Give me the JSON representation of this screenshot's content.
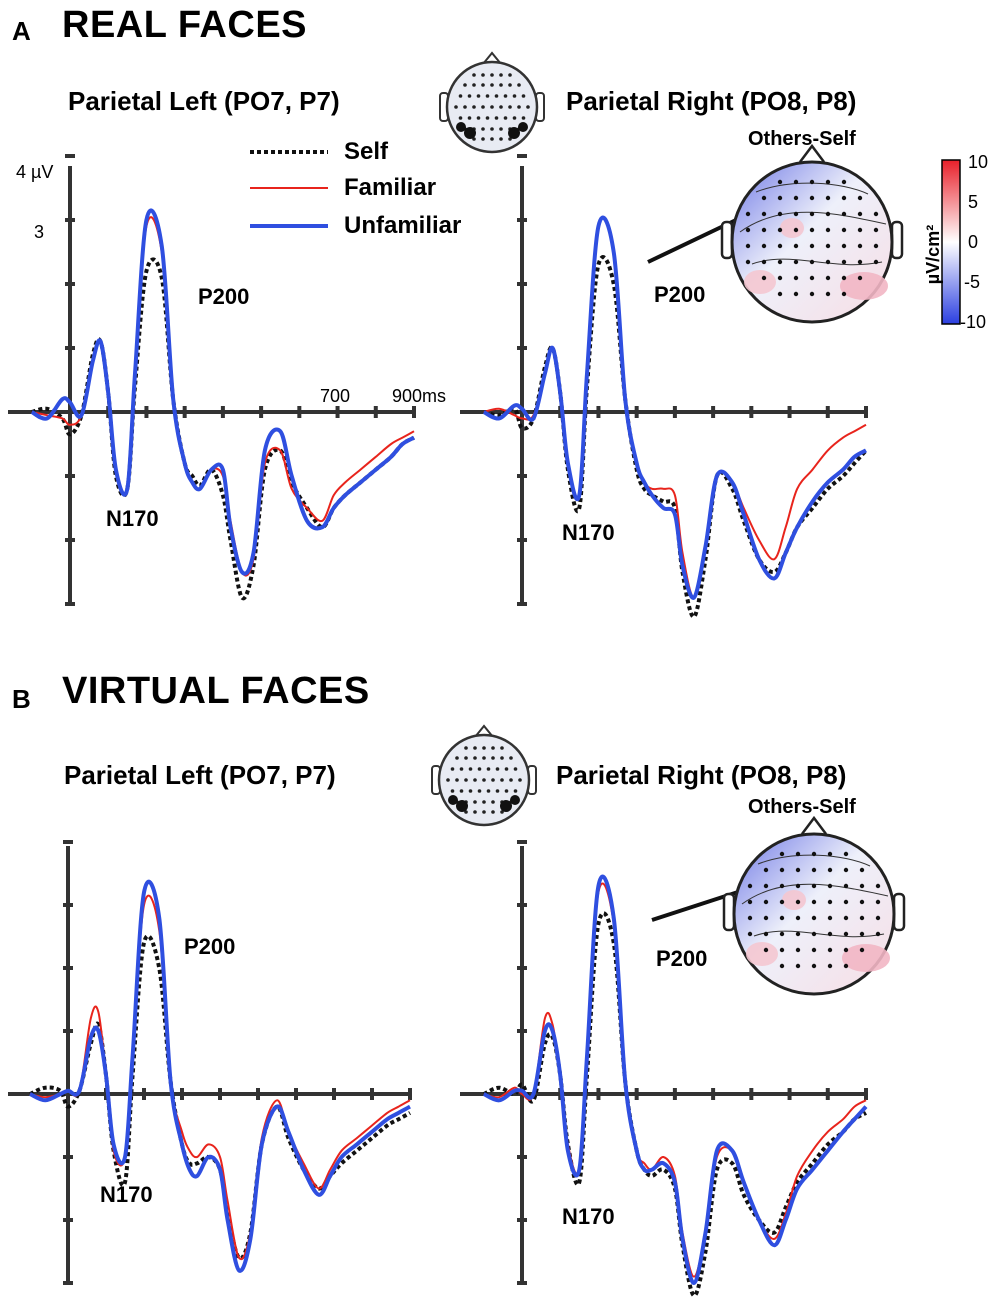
{
  "panels": [
    {
      "letter": "A",
      "heading": "REAL FACES",
      "left_title": "Parietal Left (PO7, P7)",
      "right_title": "Parietal Right (PO8, P8)",
      "topo_title": "Others-Self",
      "y_top_label": "4 µV",
      "y_3_label": "3",
      "x_700_label": "700",
      "x_900_label": "900ms",
      "peaks": {
        "p200": "P200",
        "n170": "N170"
      }
    },
    {
      "letter": "B",
      "heading": "VIRTUAL FACES",
      "left_title": "Parietal Left (PO7, P7)",
      "right_title": "Parietal Right (PO8, P8)",
      "topo_title": "Others-Self",
      "peaks": {
        "p200": "P200",
        "n170": "N170"
      }
    }
  ],
  "legend": [
    {
      "name": "Self",
      "color": "#111111",
      "style": "dotted"
    },
    {
      "name": "Familiar",
      "color": "#e8241c",
      "style": "solid-thin"
    },
    {
      "name": "Unfamiliar",
      "color": "#2f4fe0",
      "style": "solid-thick"
    }
  ],
  "colorbar": {
    "label": "µV/cm²",
    "ticks": [
      "10",
      "5",
      "0",
      "-5",
      "-10"
    ],
    "colors": {
      "max": "#e8202a",
      "mid": "#ffffff",
      "min": "#2b3fe0"
    }
  },
  "chart_data": [
    {
      "type": "line",
      "panel": "A",
      "subplot": "Parietal Left (PO7, P7)",
      "x_unit": "ms",
      "y_unit": "µV",
      "xlim": [
        -100,
        900
      ],
      "ylim": [
        -3,
        4
      ],
      "x": [
        -100,
        -60,
        -20,
        0,
        30,
        60,
        80,
        100,
        120,
        150,
        170,
        200,
        240,
        270,
        300,
        320,
        340,
        370,
        400,
        420,
        450,
        480,
        510,
        550,
        580,
        620,
        660,
        690,
        720,
        760,
        800,
        840,
        870,
        900
      ],
      "series": [
        {
          "name": "Self",
          "values": [
            0,
            0.05,
            -0.1,
            -0.35,
            -0.05,
            0.9,
            1.1,
            0.3,
            -1.0,
            -1.2,
            0.4,
            2.2,
            2.1,
            0.2,
            -0.8,
            -1.0,
            -1.15,
            -0.9,
            -1.3,
            -2.0,
            -2.9,
            -2.4,
            -0.9,
            -0.6,
            -1.1,
            -1.5,
            -1.8,
            -1.5,
            -1.3,
            -1.1,
            -0.9,
            -0.7,
            -0.5,
            -0.4
          ]
        },
        {
          "name": "Familiar",
          "values": [
            0,
            -0.05,
            -0.1,
            -0.2,
            -0.05,
            0.8,
            1.1,
            0.3,
            -0.9,
            -1.2,
            0.5,
            2.9,
            2.5,
            0.2,
            -0.8,
            -1.1,
            -1.2,
            -0.9,
            -1.0,
            -1.7,
            -2.5,
            -2.3,
            -0.8,
            -0.6,
            -1.2,
            -1.5,
            -1.7,
            -1.3,
            -1.1,
            -0.9,
            -0.7,
            -0.5,
            -0.4,
            -0.3
          ]
        },
        {
          "name": "Unfamiliar",
          "values": [
            0,
            -0.1,
            0.2,
            0.15,
            -0.05,
            0.8,
            1.1,
            0.3,
            -0.9,
            -1.2,
            0.6,
            3.0,
            2.6,
            0.2,
            -0.8,
            -1.1,
            -1.2,
            -0.9,
            -0.9,
            -1.8,
            -2.5,
            -2.2,
            -0.6,
            -0.3,
            -1.0,
            -1.7,
            -1.8,
            -1.5,
            -1.3,
            -1.1,
            -0.9,
            -0.7,
            -0.5,
            -0.4
          ]
        }
      ]
    },
    {
      "type": "line",
      "panel": "A",
      "subplot": "Parietal Right (PO8, P8)",
      "x_unit": "ms",
      "y_unit": "µV",
      "xlim": [
        -100,
        900
      ],
      "ylim": [
        -3,
        4
      ],
      "x": [
        -100,
        -60,
        -20,
        0,
        30,
        60,
        80,
        100,
        120,
        150,
        170,
        200,
        240,
        270,
        300,
        320,
        340,
        370,
        400,
        420,
        450,
        480,
        510,
        550,
        580,
        620,
        660,
        690,
        720,
        760,
        800,
        840,
        870,
        900
      ],
      "series": [
        {
          "name": "Self",
          "values": [
            0,
            -0.05,
            0.05,
            -0.25,
            -0.1,
            0.7,
            1.0,
            0.3,
            -0.9,
            -1.5,
            0.4,
            2.3,
            2.0,
            0.2,
            -0.9,
            -1.2,
            -1.3,
            -1.4,
            -1.5,
            -2.5,
            -3.2,
            -2.3,
            -1.0,
            -1.2,
            -1.7,
            -2.3,
            -2.5,
            -2.2,
            -1.8,
            -1.5,
            -1.2,
            -1.0,
            -0.8,
            -0.6
          ]
        },
        {
          "name": "Familiar",
          "values": [
            0,
            0.05,
            -0.05,
            -0.1,
            -0.05,
            0.6,
            1.0,
            0.3,
            -0.8,
            -1.3,
            0.6,
            2.9,
            2.5,
            0.2,
            -0.8,
            -1.1,
            -1.2,
            -1.2,
            -1.3,
            -2.2,
            -2.9,
            -2.1,
            -1.0,
            -1.1,
            -1.5,
            -2.0,
            -2.3,
            -1.8,
            -1.2,
            -0.9,
            -0.6,
            -0.4,
            -0.3,
            -0.2
          ]
        },
        {
          "name": "Unfamiliar",
          "values": [
            0,
            -0.1,
            0.1,
            0.05,
            -0.1,
            0.6,
            1.0,
            0.3,
            -0.8,
            -1.3,
            0.6,
            2.9,
            2.5,
            0.2,
            -0.8,
            -1.1,
            -1.3,
            -1.5,
            -1.6,
            -2.4,
            -2.9,
            -2.1,
            -1.0,
            -1.1,
            -1.6,
            -2.3,
            -2.6,
            -2.2,
            -1.8,
            -1.4,
            -1.1,
            -0.9,
            -0.7,
            -0.6
          ]
        }
      ]
    },
    {
      "type": "line",
      "panel": "B",
      "subplot": "Parietal Left (PO7, P7)",
      "x_unit": "ms",
      "y_unit": "µV",
      "xlim": [
        -100,
        900
      ],
      "ylim": [
        -3,
        4
      ],
      "x": [
        -100,
        -60,
        -20,
        0,
        30,
        60,
        80,
        100,
        120,
        150,
        170,
        200,
        240,
        270,
        300,
        320,
        340,
        370,
        400,
        420,
        450,
        480,
        510,
        550,
        580,
        620,
        660,
        690,
        720,
        760,
        800,
        840,
        870,
        900
      ],
      "series": [
        {
          "name": "Self",
          "values": [
            0,
            0.1,
            0.05,
            -0.2,
            0.05,
            0.8,
            1.1,
            0.3,
            -0.9,
            -1.4,
            0.3,
            2.4,
            2.0,
            0.2,
            -0.8,
            -1.1,
            -1.1,
            -1.0,
            -1.2,
            -1.9,
            -2.6,
            -2.2,
            -0.8,
            -0.2,
            -0.7,
            -1.2,
            -1.5,
            -1.3,
            -1.1,
            -0.9,
            -0.7,
            -0.5,
            -0.4,
            -0.3
          ]
        },
        {
          "name": "Familiar",
          "values": [
            0,
            -0.05,
            0.0,
            0.05,
            0.05,
            1.2,
            1.3,
            0.3,
            -0.9,
            -1.0,
            0.6,
            3.0,
            2.6,
            0.2,
            -0.6,
            -0.9,
            -1.0,
            -0.8,
            -1.0,
            -1.7,
            -2.6,
            -2.2,
            -0.7,
            -0.1,
            -0.6,
            -1.1,
            -1.5,
            -1.2,
            -0.9,
            -0.7,
            -0.5,
            -0.3,
            -0.2,
            -0.1
          ]
        },
        {
          "name": "Unfamiliar",
          "values": [
            0,
            -0.1,
            0.0,
            0.05,
            0.05,
            0.9,
            1.0,
            0.3,
            -0.8,
            -1.0,
            0.6,
            3.2,
            2.8,
            0.2,
            -0.8,
            -1.2,
            -1.3,
            -1.0,
            -1.2,
            -2.0,
            -2.8,
            -2.3,
            -0.8,
            -0.2,
            -0.6,
            -1.2,
            -1.6,
            -1.3,
            -1.0,
            -0.8,
            -0.6,
            -0.4,
            -0.3,
            -0.2
          ]
        }
      ]
    },
    {
      "type": "line",
      "panel": "B",
      "subplot": "Parietal Right (PO8, P8)",
      "x_unit": "ms",
      "y_unit": "µV",
      "xlim": [
        -100,
        900
      ],
      "ylim": [
        -3,
        4
      ],
      "x": [
        -100,
        -60,
        -20,
        0,
        30,
        60,
        80,
        100,
        120,
        150,
        170,
        200,
        240,
        270,
        300,
        320,
        340,
        370,
        400,
        420,
        450,
        480,
        510,
        550,
        580,
        620,
        660,
        690,
        720,
        760,
        800,
        840,
        870,
        900
      ],
      "series": [
        {
          "name": "Self",
          "values": [
            0,
            0.1,
            0.0,
            0.15,
            -0.1,
            0.8,
            0.9,
            0.3,
            -0.8,
            -1.4,
            0.3,
            2.7,
            2.4,
            0.2,
            -0.9,
            -1.2,
            -1.3,
            -1.2,
            -1.5,
            -2.4,
            -3.2,
            -2.5,
            -1.2,
            -1.1,
            -1.6,
            -2.0,
            -2.2,
            -1.8,
            -1.4,
            -1.1,
            -0.8,
            -0.6,
            -0.4,
            -0.3
          ]
        },
        {
          "name": "Familiar",
          "values": [
            0,
            -0.05,
            0.1,
            0.0,
            0.0,
            1.2,
            1.1,
            0.3,
            -0.8,
            -1.2,
            0.6,
            3.2,
            2.7,
            0.2,
            -0.9,
            -1.1,
            -1.2,
            -1.0,
            -1.3,
            -2.2,
            -2.9,
            -2.2,
            -1.0,
            -0.9,
            -1.4,
            -2.0,
            -2.3,
            -1.9,
            -1.3,
            -0.9,
            -0.6,
            -0.4,
            -0.2,
            -0.1
          ]
        },
        {
          "name": "Unfamiliar",
          "values": [
            0,
            -0.1,
            0.05,
            0.05,
            0.0,
            1.0,
            1.0,
            0.3,
            -0.9,
            -1.2,
            0.6,
            3.3,
            2.8,
            0.2,
            -0.9,
            -1.2,
            -1.2,
            -1.1,
            -1.4,
            -2.3,
            -3.0,
            -2.2,
            -0.9,
            -0.9,
            -1.4,
            -2.0,
            -2.4,
            -2.0,
            -1.5,
            -1.2,
            -0.9,
            -0.6,
            -0.4,
            -0.2
          ]
        }
      ]
    }
  ]
}
